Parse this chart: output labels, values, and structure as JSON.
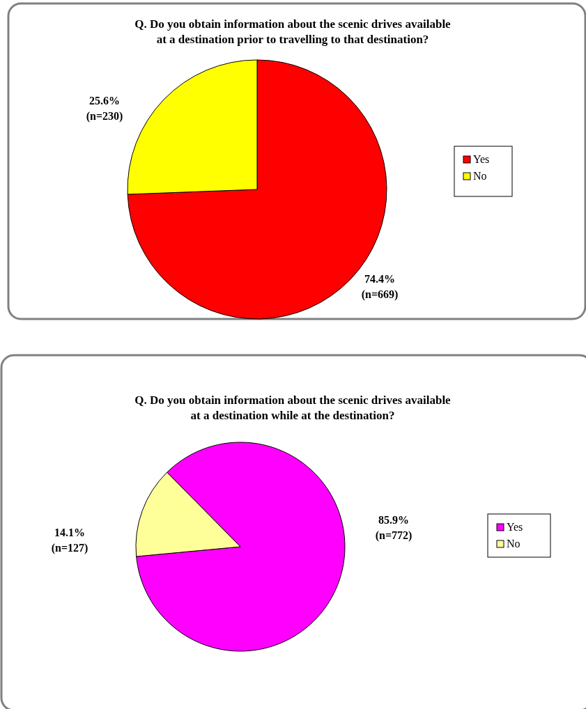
{
  "chart_data": [
    {
      "type": "pie",
      "title": "Q. Do you obtain information about the scenic drives available\nat a destination prior to travelling to that destination?",
      "categories": [
        "Yes",
        "No"
      ],
      "values": [
        74.4,
        25.6
      ],
      "colors": [
        "#ff0000",
        "#ffff00"
      ],
      "value_labels": [
        "74.4%\n(n=669)",
        "25.6%\n(n=230)"
      ],
      "legend": "right"
    },
    {
      "type": "pie",
      "title": "Q. Do you obtain information about the scenic drives available\nat a destination while at the destination?",
      "categories": [
        "Yes",
        "No"
      ],
      "values": [
        85.9,
        14.1
      ],
      "colors": [
        "#ff00ff",
        "#ffff99"
      ],
      "value_labels": [
        "85.9%\n(n=772)",
        "14.1%\n(n=127)"
      ],
      "legend": "right"
    }
  ]
}
